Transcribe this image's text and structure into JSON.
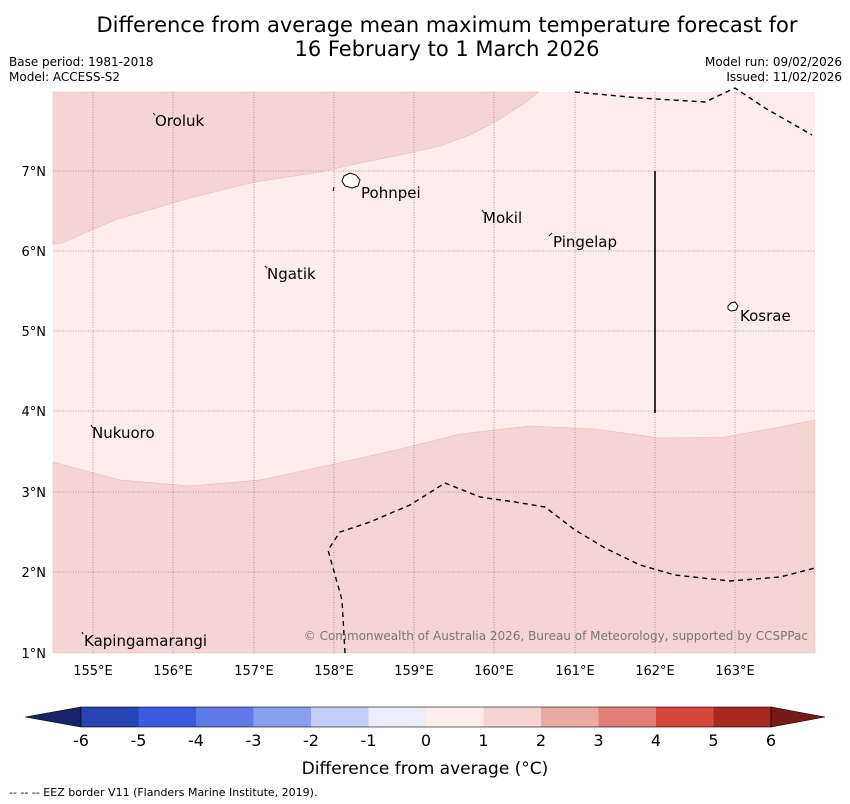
{
  "title_line1": "Difference from average mean maximum temperature forecast for",
  "title_line2": "16 February to 1 March 2026",
  "base_period": "Base period: 1981-2018",
  "model": "Model: ACCESS-S2",
  "model_run": "Model run: 09/02/2026",
  "issued": "Issued: 11/02/2026",
  "lon_labels": [
    "155°E",
    "156°E",
    "157°E",
    "158°E",
    "159°E",
    "160°E",
    "161°E",
    "162°E",
    "163°E"
  ],
  "lat_labels": [
    "7°N",
    "6°N",
    "5°N",
    "4°N",
    "3°N",
    "2°N",
    "1°N"
  ],
  "places": [
    "Oroluk",
    "Pohnpei",
    "Mokil",
    "Pingelap",
    "Ngatik",
    "Kosrae",
    "Nukuoro",
    "Kapingamarangi"
  ],
  "copyright": "© Commonwealth of Australia 2026, Bureau of Meteorology, supported by CCSPPac",
  "colorbar": {
    "ticks": [
      "-6",
      "-5",
      "-4",
      "-3",
      "-2",
      "-1",
      "0",
      "1",
      "2",
      "3",
      "4",
      "5",
      "6"
    ],
    "colors": [
      "#18236b",
      "#2a43b2",
      "#3c59e0",
      "#5f7ae6",
      "#8a9fee",
      "#c4cdf6",
      "#ecedfb",
      "#fdeeec",
      "#f5d5d4",
      "#eca8a5",
      "#e27f79",
      "#d7473e",
      "#a82824",
      "#7a1a18"
    ],
    "label": "Difference from average (°C)"
  },
  "footer": "--  --  -- EEZ border V11 (Flanders Marine Institute, 2019)."
}
